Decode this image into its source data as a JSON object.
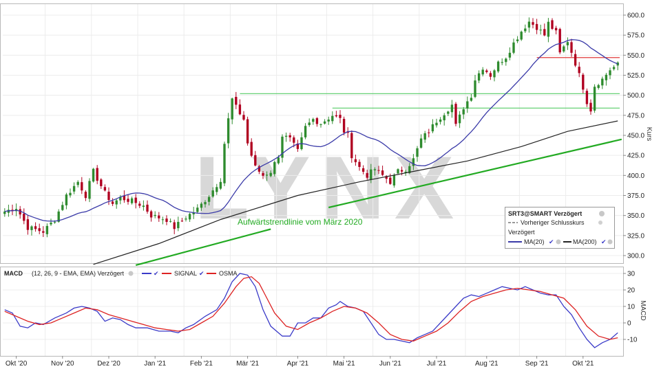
{
  "watermark": "LYNX",
  "colors": {
    "up": "#2e8b2e",
    "down": "#b00020",
    "ma20": "#3a3aa8",
    "ma200": "#222222",
    "trend": "#22aa22",
    "support": "#55cc66",
    "resistance": "#dd2222",
    "macd": "#3a3ac8",
    "signal": "#dd2222"
  },
  "legend": {
    "title": "SRT3@SMART Verzögert",
    "prev_close": "Vorheriger Schlusskurs",
    "delayed": "Verzögert",
    "ma20": "MA(20)",
    "ma200": "MA(200)"
  },
  "macd_legend": {
    "title": "MACD",
    "params": "(12, 26, 9 - EMA, EMA) Verzögert",
    "signal": "SIGNAL",
    "osma": "OSMA"
  },
  "annotation": "Aufwärtstrendlinie vom März 2020",
  "chart_data": [
    {
      "type": "candlestick",
      "ylabel": "Kurs",
      "ylim": [
        288,
        603
      ],
      "yticks": [
        "600.0",
        "575.0",
        "550.0",
        "525.0",
        "500.0",
        "475.0",
        "450.0",
        "425.0",
        "400.0",
        "375.0",
        "350.0",
        "325.0",
        "300.0"
      ],
      "x_months": [
        "Okt '20",
        "Nov '20",
        "Dez '20",
        "Jan '21",
        "Feb '21",
        "Mär '21",
        "Apr '21",
        "Mai '21",
        "Jun '21",
        "Jul '21",
        "Aug '21",
        "Sep '21",
        "Okt '21"
      ],
      "price_path": [
        [
          0,
          355
        ],
        [
          3,
          360
        ],
        [
          6,
          335
        ],
        [
          10,
          330
        ],
        [
          13,
          345
        ],
        [
          16,
          375
        ],
        [
          19,
          392
        ],
        [
          21,
          375
        ],
        [
          23,
          405
        ],
        [
          26,
          378
        ],
        [
          28,
          365
        ],
        [
          30,
          372
        ],
        [
          33,
          368
        ],
        [
          36,
          362
        ],
        [
          38,
          350
        ],
        [
          42,
          345
        ],
        [
          44,
          335
        ],
        [
          47,
          348
        ],
        [
          50,
          358
        ],
        [
          53,
          375
        ],
        [
          56,
          395
        ],
        [
          57,
          440
        ],
        [
          58,
          470
        ],
        [
          59,
          495
        ],
        [
          60,
          485
        ],
        [
          62,
          470
        ],
        [
          63,
          440
        ],
        [
          65,
          410
        ],
        [
          67,
          400
        ],
        [
          69,
          405
        ],
        [
          71,
          425
        ],
        [
          72,
          450
        ],
        [
          74,
          445
        ],
        [
          76,
          430
        ],
        [
          78,
          460
        ],
        [
          80,
          470
        ],
        [
          82,
          465
        ],
        [
          85,
          475
        ],
        [
          87,
          470
        ],
        [
          88,
          455
        ],
        [
          89,
          450
        ],
        [
          90,
          425
        ],
        [
          92,
          410
        ],
        [
          94,
          400
        ],
        [
          96,
          408
        ],
        [
          98,
          400
        ],
        [
          100,
          392
        ],
        [
          102,
          405
        ],
        [
          104,
          408
        ],
        [
          106,
          420
        ],
        [
          108,
          445
        ],
        [
          110,
          455
        ],
        [
          112,
          468
        ],
        [
          114,
          478
        ],
        [
          116,
          488
        ],
        [
          117,
          462
        ],
        [
          119,
          485
        ],
        [
          121,
          500
        ],
        [
          122,
          520
        ],
        [
          124,
          535
        ],
        [
          126,
          525
        ],
        [
          128,
          540
        ],
        [
          130,
          548
        ],
        [
          132,
          565
        ],
        [
          134,
          580
        ],
        [
          136,
          592
        ],
        [
          138,
          585
        ],
        [
          140,
          575
        ],
        [
          141,
          590
        ],
        [
          143,
          578
        ],
        [
          144,
          552
        ],
        [
          146,
          568
        ],
        [
          148,
          540
        ],
        [
          150,
          510
        ],
        [
          151,
          492
        ],
        [
          152,
          482
        ],
        [
          153,
          512
        ],
        [
          155,
          520
        ],
        [
          157,
          532
        ],
        [
          159,
          538
        ]
      ],
      "candle_count": 160,
      "moving_averages": [
        {
          "name": "MA(20)",
          "color": "#3a3aa8",
          "period": 20
        },
        {
          "name": "MA(200)",
          "color": "#222222",
          "path": [
            [
              23,
              289
            ],
            [
              40,
              315
            ],
            [
              56,
              345
            ],
            [
              76,
              375
            ],
            [
              92,
              392
            ],
            [
              106,
              405
            ],
            [
              120,
              418
            ],
            [
              134,
              436
            ],
            [
              146,
              455
            ],
            [
              159,
              468
            ]
          ]
        }
      ],
      "horizontal_lines": [
        {
          "name": "resistance",
          "y": 547,
          "x_from": 138,
          "x_to": 159,
          "color": "#dd2222"
        },
        {
          "name": "support-upper",
          "y": 502,
          "x_from": 61,
          "x_to": 159,
          "color": "#55cc66"
        },
        {
          "name": "support-lower",
          "y": 484,
          "x_from": 85,
          "x_to": 159,
          "color": "#55cc66"
        }
      ],
      "trendlines": [
        {
          "name": "trend-lower",
          "from": [
            34,
            288
          ],
          "to": [
            69,
            333
          ],
          "color": "#22aa22"
        },
        {
          "name": "trend-upper",
          "from": [
            84,
            360
          ],
          "to": [
            160,
            445
          ],
          "color": "#22aa22"
        }
      ]
    },
    {
      "type": "line",
      "title": "MACD",
      "ylabel": "MACD",
      "ylim": [
        -18,
        33
      ],
      "yticks": [
        "30",
        "20",
        "10",
        "0",
        "-10"
      ],
      "series": [
        {
          "name": "MACD",
          "color": "#3a3ac8",
          "points": [
            [
              0,
              8
            ],
            [
              2,
              6
            ],
            [
              4,
              -2
            ],
            [
              6,
              -3
            ],
            [
              8,
              0
            ],
            [
              10,
              -1
            ],
            [
              13,
              3
            ],
            [
              16,
              6
            ],
            [
              18,
              9
            ],
            [
              20,
              10
            ],
            [
              22,
              9
            ],
            [
              24,
              7
            ],
            [
              26,
              1
            ],
            [
              28,
              3
            ],
            [
              30,
              2
            ],
            [
              32,
              -1
            ],
            [
              34,
              -3
            ],
            [
              37,
              -3
            ],
            [
              40,
              -5
            ],
            [
              43,
              -5
            ],
            [
              45,
              -6
            ],
            [
              47,
              -3
            ],
            [
              49,
              -1
            ],
            [
              52,
              4
            ],
            [
              55,
              8
            ],
            [
              57,
              15
            ],
            [
              59,
              25
            ],
            [
              61,
              30
            ],
            [
              63,
              29
            ],
            [
              65,
              22
            ],
            [
              67,
              8
            ],
            [
              69,
              -2
            ],
            [
              72,
              -8
            ],
            [
              74,
              -8
            ],
            [
              76,
              0
            ],
            [
              78,
              0
            ],
            [
              80,
              3
            ],
            [
              82,
              3
            ],
            [
              84,
              9
            ],
            [
              86,
              11
            ],
            [
              87,
              13
            ],
            [
              89,
              10
            ],
            [
              91,
              9
            ],
            [
              93,
              7
            ],
            [
              95,
              0
            ],
            [
              97,
              -7
            ],
            [
              99,
              -10
            ],
            [
              101,
              -10
            ],
            [
              103,
              -11
            ],
            [
              105,
              -12
            ],
            [
              107,
              -9
            ],
            [
              109,
              -7
            ],
            [
              111,
              -5
            ],
            [
              113,
              0
            ],
            [
              115,
              5
            ],
            [
              117,
              10
            ],
            [
              119,
              15
            ],
            [
              121,
              17
            ],
            [
              123,
              16
            ],
            [
              125,
              18
            ],
            [
              127,
              20
            ],
            [
              129,
              22
            ],
            [
              131,
              21
            ],
            [
              133,
              20
            ],
            [
              135,
              22
            ],
            [
              137,
              20
            ],
            [
              139,
              18
            ],
            [
              141,
              17
            ],
            [
              143,
              17
            ],
            [
              145,
              10
            ],
            [
              147,
              5
            ],
            [
              149,
              -3
            ],
            [
              151,
              -10
            ],
            [
              153,
              -15
            ],
            [
              155,
              -12
            ],
            [
              157,
              -10
            ],
            [
              159,
              -6
            ]
          ]
        },
        {
          "name": "SIGNAL",
          "color": "#dd2222",
          "points": [
            [
              0,
              7
            ],
            [
              3,
              4
            ],
            [
              6,
              1
            ],
            [
              9,
              -1
            ],
            [
              12,
              0
            ],
            [
              15,
              3
            ],
            [
              18,
              6
            ],
            [
              21,
              9
            ],
            [
              24,
              8
            ],
            [
              27,
              5
            ],
            [
              30,
              3
            ],
            [
              33,
              1
            ],
            [
              36,
              -1
            ],
            [
              39,
              -3
            ],
            [
              42,
              -4
            ],
            [
              45,
              -5
            ],
            [
              48,
              -4
            ],
            [
              51,
              0
            ],
            [
              54,
              4
            ],
            [
              57,
              12
            ],
            [
              60,
              22
            ],
            [
              62,
              27
            ],
            [
              64,
              28
            ],
            [
              66,
              24
            ],
            [
              68,
              15
            ],
            [
              70,
              6
            ],
            [
              73,
              -2
            ],
            [
              76,
              -4
            ],
            [
              79,
              0
            ],
            [
              82,
              3
            ],
            [
              85,
              7
            ],
            [
              88,
              10
            ],
            [
              91,
              9
            ],
            [
              94,
              6
            ],
            [
              97,
              0
            ],
            [
              100,
              -7
            ],
            [
              103,
              -10
            ],
            [
              106,
              -11
            ],
            [
              109,
              -8
            ],
            [
              112,
              -5
            ],
            [
              115,
              0
            ],
            [
              118,
              7
            ],
            [
              121,
              13
            ],
            [
              124,
              16
            ],
            [
              127,
              18
            ],
            [
              130,
              20
            ],
            [
              133,
              21
            ],
            [
              136,
              20
            ],
            [
              139,
              19
            ],
            [
              142,
              17
            ],
            [
              145,
              15
            ],
            [
              148,
              8
            ],
            [
              151,
              -2
            ],
            [
              154,
              -8
            ],
            [
              157,
              -10
            ],
            [
              159,
              -9
            ]
          ]
        }
      ]
    }
  ]
}
